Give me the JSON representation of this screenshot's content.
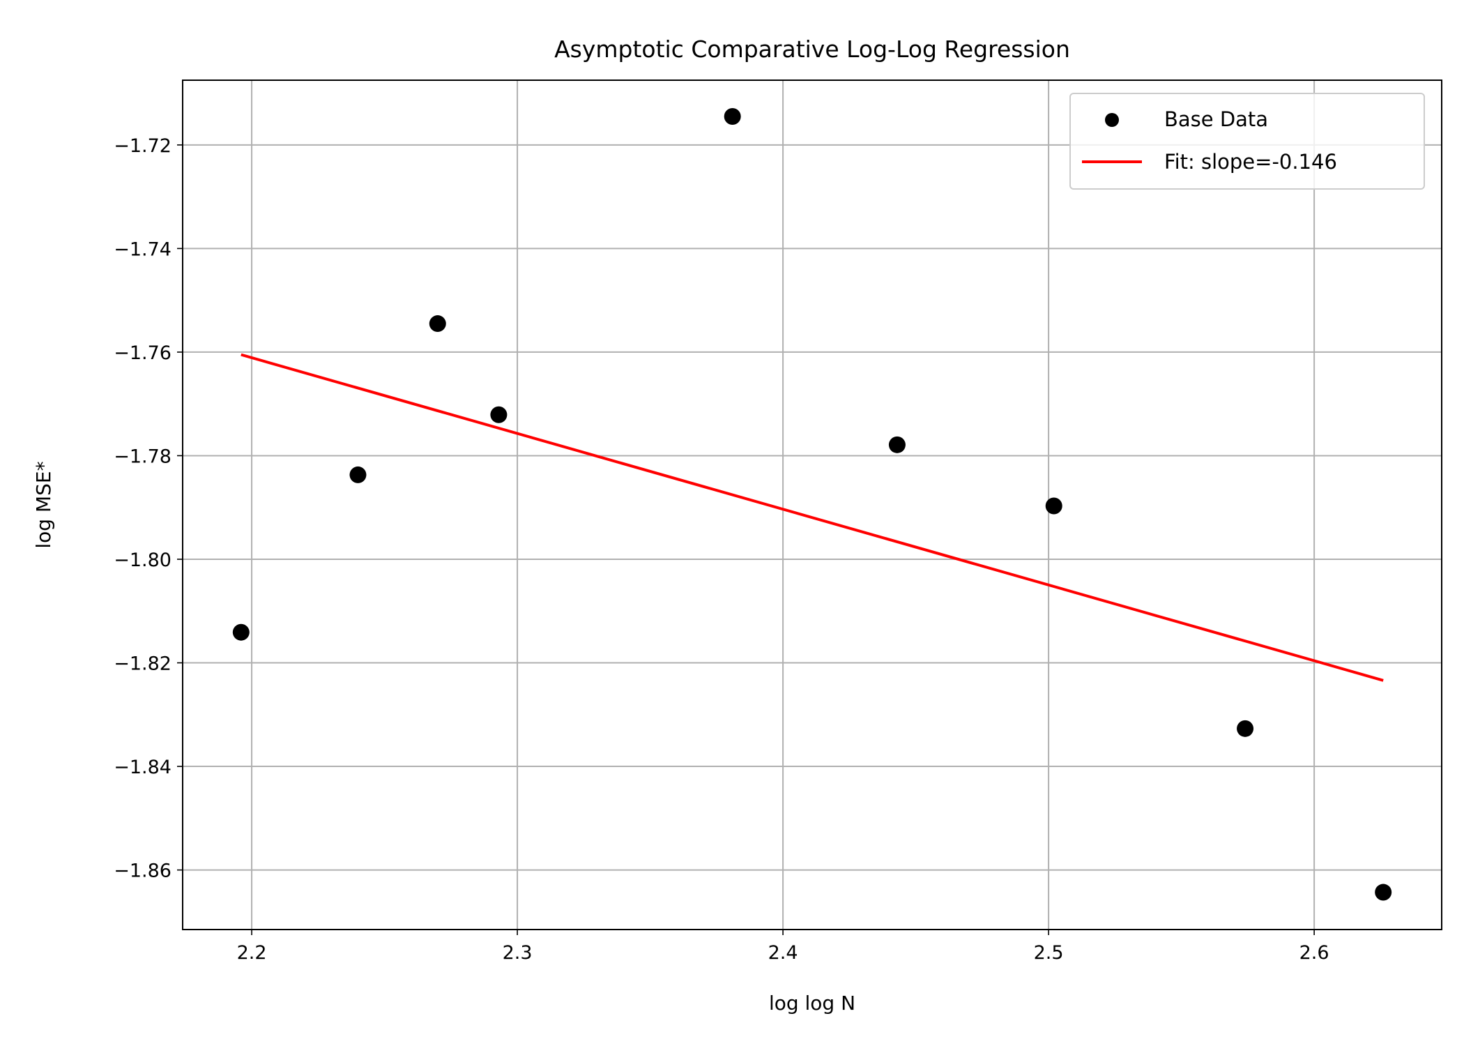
{
  "chart_data": {
    "type": "scatter",
    "title": "Asymptotic Comparative Log-Log Regression",
    "xlabel": "log log N",
    "ylabel": "log MSE*",
    "xlim": [
      2.174,
      2.648
    ],
    "ylim": [
      -1.8715,
      -1.7075
    ],
    "xticks": [
      2.2,
      2.3,
      2.4,
      2.5,
      2.6
    ],
    "xtick_labels": [
      "2.2",
      "2.3",
      "2.4",
      "2.5",
      "2.6"
    ],
    "yticks": [
      -1.72,
      -1.74,
      -1.76,
      -1.78,
      -1.8,
      -1.82,
      -1.84,
      -1.86
    ],
    "ytick_labels": [
      "−1.72",
      "−1.74",
      "−1.76",
      "−1.78",
      "−1.80",
      "−1.82",
      "−1.84",
      "−1.86"
    ],
    "grid": true,
    "legend_position": "top-right",
    "series": [
      {
        "name": "Base Data",
        "kind": "scatter",
        "color": "#000000",
        "x": [
          2.196,
          2.24,
          2.27,
          2.293,
          2.381,
          2.443,
          2.502,
          2.574,
          2.626
        ],
        "y": [
          -1.8141,
          -1.7837,
          -1.7545,
          -1.7721,
          -1.7145,
          -1.7779,
          -1.7897,
          -1.8327,
          -1.8643
        ]
      },
      {
        "name": "Fit: slope=-0.146",
        "kind": "line",
        "color": "#ff0000",
        "x": [
          2.196,
          2.626
        ],
        "y": [
          -1.7605,
          -1.8234
        ]
      }
    ]
  }
}
